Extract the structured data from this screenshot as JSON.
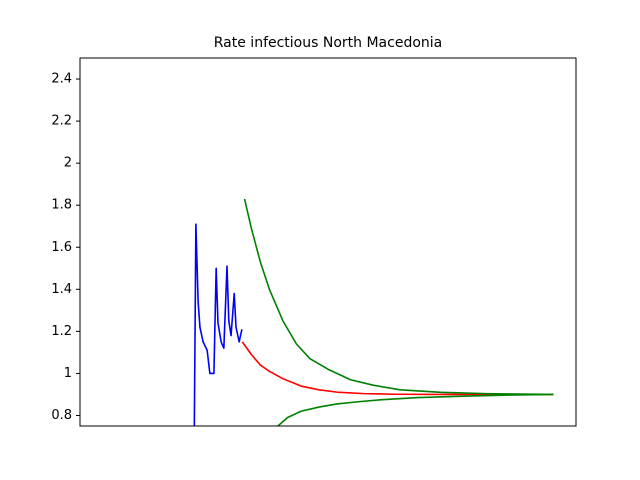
{
  "chart_data": {
    "type": "line",
    "title": "Rate infectious North Macedonia",
    "xlim": [
      -5,
      105
    ],
    "ylim": [
      0.75,
      2.5
    ],
    "yticks": [
      0.8,
      1.0,
      1.2,
      1.4,
      1.6,
      1.8,
      2.0,
      2.2,
      2.4
    ],
    "series": [
      {
        "color": "#0000ff",
        "x": [
          20.3,
          20.7,
          21.2,
          21.6,
          22.3,
          23.2,
          23.8,
          24.7,
          25.2,
          25.6,
          26.3,
          26.9,
          27.6,
          28.0,
          28.5,
          29.2,
          29.6,
          30.3,
          30.9
        ],
        "values": [
          0.6,
          1.71,
          1.34,
          1.22,
          1.15,
          1.11,
          1.0,
          1.0,
          1.5,
          1.24,
          1.15,
          1.12,
          1.51,
          1.25,
          1.18,
          1.38,
          1.22,
          1.15,
          1.21
        ]
      },
      {
        "color": "#ff0000",
        "x": [
          31,
          33,
          35,
          37,
          40,
          44,
          48,
          52,
          58,
          65,
          75,
          100
        ],
        "values": [
          1.15,
          1.09,
          1.04,
          1.01,
          0.975,
          0.94,
          0.922,
          0.911,
          0.904,
          0.901,
          0.9,
          0.9
        ]
      },
      {
        "color": "#008000",
        "x": [
          31.5,
          33,
          35,
          37,
          40,
          43,
          46,
          50,
          55,
          60,
          66,
          75,
          85,
          100
        ],
        "values": [
          1.83,
          1.69,
          1.53,
          1.4,
          1.25,
          1.14,
          1.07,
          1.02,
          0.97,
          0.944,
          0.922,
          0.91,
          0.904,
          0.9
        ]
      },
      {
        "color": "#008000",
        "x": [
          36,
          38.9,
          41,
          44,
          48,
          52,
          57,
          62,
          70,
          80,
          90,
          100
        ],
        "values": [
          0.66,
          0.75,
          0.79,
          0.82,
          0.84,
          0.855,
          0.866,
          0.875,
          0.885,
          0.892,
          0.897,
          0.9
        ]
      }
    ]
  }
}
